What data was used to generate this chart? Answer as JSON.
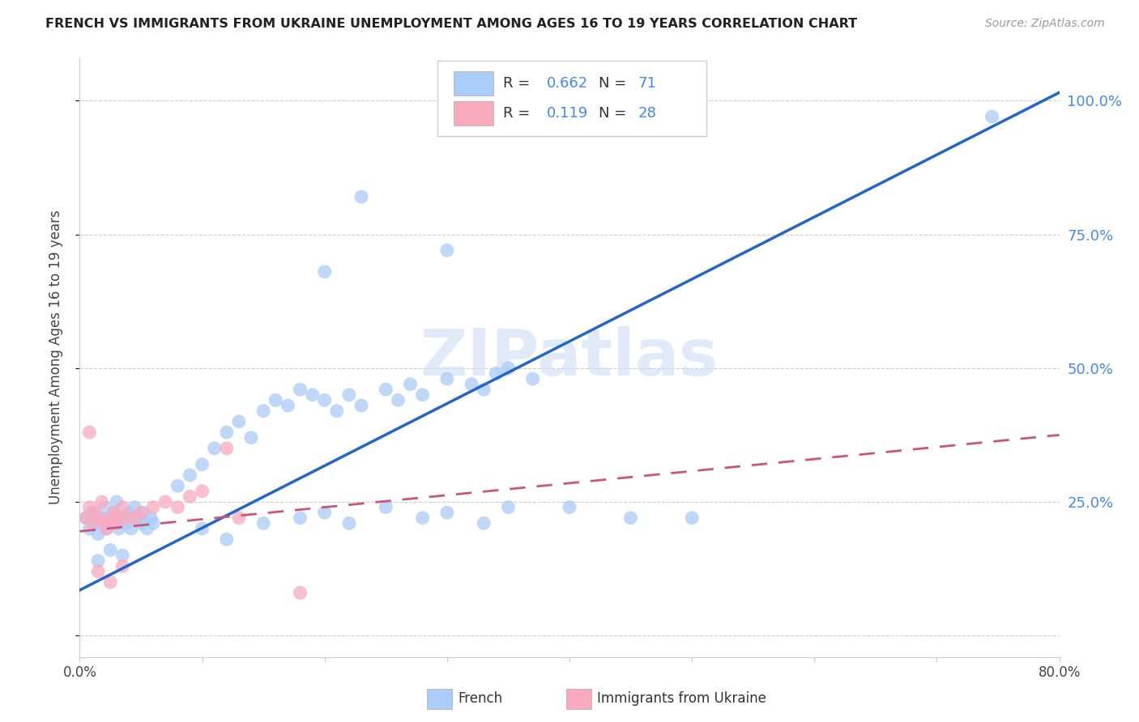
{
  "title": "FRENCH VS IMMIGRANTS FROM UKRAINE UNEMPLOYMENT AMONG AGES 16 TO 19 YEARS CORRELATION CHART",
  "source": "Source: ZipAtlas.com",
  "ylabel": "Unemployment Among Ages 16 to 19 years",
  "legend_french_r": "0.662",
  "legend_french_n": "71",
  "legend_ukraine_r": "0.119",
  "legend_ukraine_n": "28",
  "french_color": "#aaccf8",
  "french_line_color": "#2266cc",
  "ukraine_color": "#f8aabf",
  "ukraine_line_color": "#cc5577",
  "watermark_text": "ZIPatlas",
  "title_color": "#222222",
  "right_tick_color": "#4488ee",
  "french_line_x0": 0.0,
  "french_line_x1": 0.8,
  "french_line_y0": 0.085,
  "french_line_y1": 1.015,
  "ukraine_line_x0": 0.0,
  "ukraine_line_x1": 0.8,
  "ukraine_line_y0": 0.195,
  "ukraine_line_y1": 0.375,
  "xmin": 0.0,
  "xmax": 0.8,
  "ymin": -0.04,
  "ymax": 1.08,
  "ytick_vals": [
    0.0,
    0.25,
    0.5,
    0.75,
    1.0
  ],
  "ytick_labels_right": [
    "",
    "25.0%",
    "50.0%",
    "75.0%",
    "100.0%"
  ],
  "xtick_vals": [
    0.0,
    0.1,
    0.2,
    0.3,
    0.4,
    0.5,
    0.6,
    0.7,
    0.8
  ],
  "xtick_labels": [
    "0.0%",
    "",
    "",
    "",
    "",
    "",
    "",
    "",
    "80.0%"
  ]
}
